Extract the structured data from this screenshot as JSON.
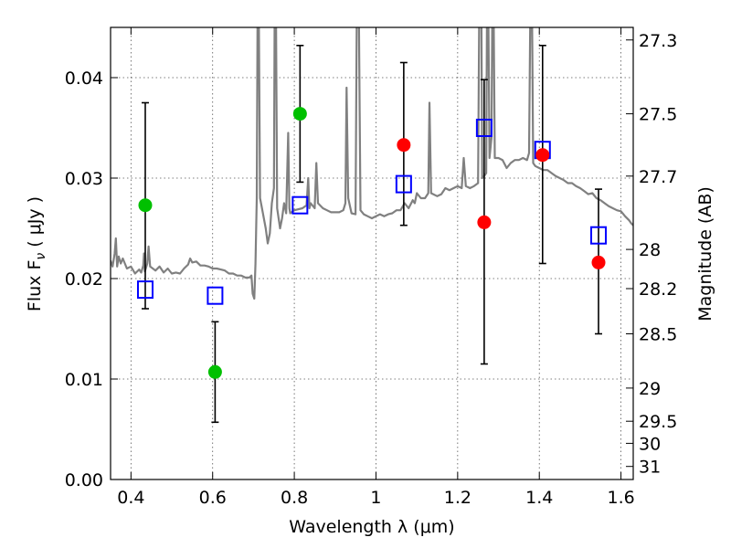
{
  "chart_data": {
    "type": "scatter",
    "xlabel": "Wavelength  λ (μm)",
    "ylabel": "Flux  F",
    "ylabel_sub": "ν",
    "ylabel_unit": " ( μJy )",
    "y2label": "Magnitude (AB)",
    "xlim": [
      0.35,
      1.63
    ],
    "ylim": [
      0.0,
      0.045
    ],
    "grid": true,
    "x_ticks": [
      {
        "value": 0.4,
        "label": "0.4"
      },
      {
        "value": 0.6,
        "label": "0.6"
      },
      {
        "value": 0.8,
        "label": "0.8"
      },
      {
        "value": 1.0,
        "label": "1"
      },
      {
        "value": 1.2,
        "label": "1.2"
      },
      {
        "value": 1.4,
        "label": "1.4"
      },
      {
        "value": 1.6,
        "label": "1.6"
      }
    ],
    "y_ticks": [
      {
        "value": 0.0,
        "label": "0.00"
      },
      {
        "value": 0.01,
        "label": "0.01"
      },
      {
        "value": 0.02,
        "label": "0.02"
      },
      {
        "value": 0.03,
        "label": "0.03"
      },
      {
        "value": 0.04,
        "label": "0.04"
      }
    ],
    "y2_ticks": [
      {
        "label": "27.3",
        "flux": 0.04375
      },
      {
        "label": "27.5",
        "flux": 0.0364
      },
      {
        "label": "27.7",
        "flux": 0.0302
      },
      {
        "label": "28",
        "flux": 0.0229
      },
      {
        "label": "28.2",
        "flux": 0.019
      },
      {
        "label": "28.5",
        "flux": 0.0145
      },
      {
        "label": "29",
        "flux": 0.0091
      },
      {
        "label": "29.5",
        "flux": 0.0058
      },
      {
        "label": "30",
        "flux": 0.0036
      },
      {
        "label": "31",
        "flux": 0.0013
      }
    ],
    "series": [
      {
        "kind": "model_spectrum",
        "color": "#808080",
        "points": [
          [
            0.35,
            0.0218
          ],
          [
            0.355,
            0.0212
          ],
          [
            0.36,
            0.0225
          ],
          [
            0.363,
            0.024
          ],
          [
            0.366,
            0.0212
          ],
          [
            0.37,
            0.0222
          ],
          [
            0.375,
            0.0215
          ],
          [
            0.38,
            0.022
          ],
          [
            0.39,
            0.021
          ],
          [
            0.4,
            0.0212
          ],
          [
            0.41,
            0.0205
          ],
          [
            0.42,
            0.0209
          ],
          [
            0.425,
            0.0206
          ],
          [
            0.43,
            0.0213
          ],
          [
            0.432,
            0.0225
          ],
          [
            0.434,
            0.0207
          ],
          [
            0.44,
            0.0215
          ],
          [
            0.443,
            0.0232
          ],
          [
            0.447,
            0.0212
          ],
          [
            0.46,
            0.0208
          ],
          [
            0.47,
            0.0212
          ],
          [
            0.48,
            0.0206
          ],
          [
            0.49,
            0.021
          ],
          [
            0.5,
            0.0205
          ],
          [
            0.51,
            0.0206
          ],
          [
            0.52,
            0.0205
          ],
          [
            0.53,
            0.021
          ],
          [
            0.54,
            0.0214
          ],
          [
            0.545,
            0.022
          ],
          [
            0.55,
            0.0216
          ],
          [
            0.56,
            0.0217
          ],
          [
            0.57,
            0.0213
          ],
          [
            0.58,
            0.0213
          ],
          [
            0.59,
            0.0212
          ],
          [
            0.6,
            0.021
          ],
          [
            0.61,
            0.021
          ],
          [
            0.62,
            0.0209
          ],
          [
            0.63,
            0.0208
          ],
          [
            0.64,
            0.0205
          ],
          [
            0.65,
            0.0205
          ],
          [
            0.66,
            0.0203
          ],
          [
            0.67,
            0.0203
          ],
          [
            0.68,
            0.0201
          ],
          [
            0.69,
            0.0201
          ],
          [
            0.695,
            0.0203
          ],
          [
            0.698,
            0.0185
          ],
          [
            0.702,
            0.018
          ],
          [
            0.705,
            0.0215
          ],
          [
            0.708,
            0.028
          ],
          [
            0.71,
            0.047
          ],
          [
            0.713,
            0.047
          ],
          [
            0.716,
            0.028
          ],
          [
            0.72,
            0.0272
          ],
          [
            0.73,
            0.025
          ],
          [
            0.735,
            0.0235
          ],
          [
            0.74,
            0.0245
          ],
          [
            0.745,
            0.0275
          ],
          [
            0.75,
            0.029
          ],
          [
            0.752,
            0.047
          ],
          [
            0.755,
            0.047
          ],
          [
            0.758,
            0.027
          ],
          [
            0.765,
            0.025
          ],
          [
            0.77,
            0.026
          ],
          [
            0.775,
            0.0275
          ],
          [
            0.78,
            0.0265
          ],
          [
            0.785,
            0.0345
          ],
          [
            0.788,
            0.027
          ],
          [
            0.79,
            0.0265
          ],
          [
            0.8,
            0.0268
          ],
          [
            0.82,
            0.027
          ],
          [
            0.83,
            0.0273
          ],
          [
            0.834,
            0.03
          ],
          [
            0.837,
            0.027
          ],
          [
            0.84,
            0.0275
          ],
          [
            0.85,
            0.027
          ],
          [
            0.854,
            0.0315
          ],
          [
            0.858,
            0.0275
          ],
          [
            0.87,
            0.027
          ],
          [
            0.88,
            0.0268
          ],
          [
            0.89,
            0.0266
          ],
          [
            0.9,
            0.0266
          ],
          [
            0.91,
            0.0266
          ],
          [
            0.92,
            0.0268
          ],
          [
            0.925,
            0.0275
          ],
          [
            0.928,
            0.039
          ],
          [
            0.932,
            0.028
          ],
          [
            0.94,
            0.0265
          ],
          [
            0.95,
            0.0264
          ],
          [
            0.953,
            0.047
          ],
          [
            0.958,
            0.047
          ],
          [
            0.962,
            0.0268
          ],
          [
            0.97,
            0.0264
          ],
          [
            0.98,
            0.0262
          ],
          [
            0.99,
            0.026
          ],
          [
            1.0,
            0.0262
          ],
          [
            1.01,
            0.0264
          ],
          [
            1.02,
            0.0262
          ],
          [
            1.03,
            0.0264
          ],
          [
            1.04,
            0.0265
          ],
          [
            1.05,
            0.0268
          ],
          [
            1.06,
            0.0268
          ],
          [
            1.07,
            0.0275
          ],
          [
            1.08,
            0.027
          ],
          [
            1.09,
            0.0278
          ],
          [
            1.095,
            0.0275
          ],
          [
            1.1,
            0.0285
          ],
          [
            1.11,
            0.028
          ],
          [
            1.12,
            0.028
          ],
          [
            1.128,
            0.0285
          ],
          [
            1.131,
            0.0375
          ],
          [
            1.135,
            0.0285
          ],
          [
            1.15,
            0.0282
          ],
          [
            1.16,
            0.0284
          ],
          [
            1.17,
            0.029
          ],
          [
            1.18,
            0.0288
          ],
          [
            1.19,
            0.029
          ],
          [
            1.2,
            0.0292
          ],
          [
            1.21,
            0.029
          ],
          [
            1.215,
            0.032
          ],
          [
            1.22,
            0.0292
          ],
          [
            1.23,
            0.029
          ],
          [
            1.24,
            0.0292
          ],
          [
            1.25,
            0.0295
          ],
          [
            1.253,
            0.047
          ],
          [
            1.258,
            0.047
          ],
          [
            1.26,
            0.03
          ],
          [
            1.265,
            0.0302
          ],
          [
            1.27,
            0.0305
          ],
          [
            1.272,
            0.047
          ],
          [
            1.275,
            0.047
          ],
          [
            1.278,
            0.032
          ],
          [
            1.283,
            0.034
          ],
          [
            1.285,
            0.047
          ],
          [
            1.288,
            0.047
          ],
          [
            1.291,
            0.032
          ],
          [
            1.3,
            0.032
          ],
          [
            1.31,
            0.0318
          ],
          [
            1.32,
            0.031
          ],
          [
            1.33,
            0.0315
          ],
          [
            1.34,
            0.0318
          ],
          [
            1.35,
            0.0318
          ],
          [
            1.36,
            0.032
          ],
          [
            1.37,
            0.0318
          ],
          [
            1.375,
            0.0325
          ],
          [
            1.378,
            0.047
          ],
          [
            1.382,
            0.047
          ],
          [
            1.385,
            0.0315
          ],
          [
            1.39,
            0.0312
          ],
          [
            1.4,
            0.031
          ],
          [
            1.41,
            0.0308
          ],
          [
            1.42,
            0.0308
          ],
          [
            1.43,
            0.0305
          ],
          [
            1.44,
            0.0302
          ],
          [
            1.45,
            0.03
          ],
          [
            1.46,
            0.0298
          ],
          [
            1.47,
            0.0295
          ],
          [
            1.48,
            0.0295
          ],
          [
            1.49,
            0.0292
          ],
          [
            1.5,
            0.029
          ],
          [
            1.51,
            0.0287
          ],
          [
            1.52,
            0.0284
          ],
          [
            1.53,
            0.0285
          ],
          [
            1.54,
            0.028
          ],
          [
            1.55,
            0.0278
          ],
          [
            1.56,
            0.0275
          ],
          [
            1.57,
            0.0272
          ],
          [
            1.58,
            0.027
          ],
          [
            1.59,
            0.0268
          ],
          [
            1.6,
            0.0267
          ],
          [
            1.61,
            0.0262
          ],
          [
            1.62,
            0.0258
          ],
          [
            1.625,
            0.0255
          ],
          [
            1.63,
            0.0253
          ]
        ]
      },
      {
        "kind": "error_bars",
        "color": "#000000",
        "bars": [
          {
            "x": 0.435,
            "low": 0.017,
            "high": 0.0375
          },
          {
            "x": 0.606,
            "low": 0.0057,
            "high": 0.0157
          },
          {
            "x": 0.814,
            "low": 0.0296,
            "high": 0.0432
          },
          {
            "x": 1.068,
            "low": 0.0253,
            "high": 0.0415
          },
          {
            "x": 1.265,
            "low": 0.0115,
            "high": 0.0398
          },
          {
            "x": 1.408,
            "low": 0.0215,
            "high": 0.0432
          },
          {
            "x": 1.545,
            "low": 0.0145,
            "high": 0.0289
          }
        ]
      },
      {
        "kind": "model_points",
        "marker": "square",
        "color": "#0000ff",
        "points": [
          [
            0.435,
            0.0189
          ],
          [
            0.606,
            0.0183
          ],
          [
            0.814,
            0.0273
          ],
          [
            1.068,
            0.0294
          ],
          [
            1.265,
            0.035
          ],
          [
            1.408,
            0.0328
          ],
          [
            1.545,
            0.0243
          ]
        ]
      },
      {
        "kind": "observed_points",
        "marker": "circle",
        "color": "#00c000",
        "points": [
          [
            0.435,
            0.0273
          ],
          [
            0.606,
            0.0107
          ],
          [
            0.814,
            0.0364
          ]
        ]
      },
      {
        "kind": "observed_points",
        "marker": "circle",
        "color": "#ff0000",
        "points": [
          [
            1.068,
            0.0333
          ],
          [
            1.265,
            0.0256
          ],
          [
            1.408,
            0.0323
          ],
          [
            1.545,
            0.0216
          ]
        ]
      }
    ]
  }
}
